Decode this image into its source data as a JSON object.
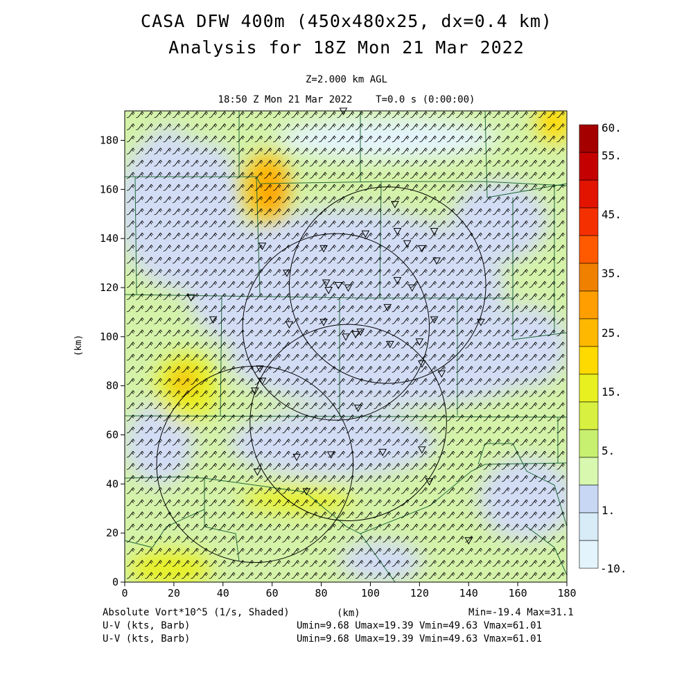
{
  "header": {
    "title_line1": "CASA DFW 400m (450x480x25, dx=0.4 km)",
    "title_line2": "Analysis for 18Z Mon 21 Mar 2022",
    "level": "Z=2.000 km AGL",
    "valid_time": "18:50 Z Mon 21 Mar 2022",
    "t_info": "T=0.0 s (0:00:00)"
  },
  "axes": {
    "x_label": "(km)",
    "y_label": "(km)",
    "x_range": [
      0,
      180
    ],
    "y_range": [
      0,
      192
    ],
    "x_ticks": [
      "0",
      "20",
      "40",
      "60",
      "80",
      "100",
      "120",
      "140",
      "160",
      "180"
    ],
    "y_ticks": [
      "0",
      "20",
      "40",
      "60",
      "80",
      "100",
      "120",
      "140",
      "160",
      "180"
    ]
  },
  "colorbar": {
    "labels": [
      "60.",
      "55.",
      "45.",
      "35.",
      "25.",
      "15.",
      "5.",
      "1.",
      "-10."
    ],
    "colors": [
      "#a50000",
      "#c40000",
      "#e21400",
      "#f53000",
      "#ff5a00",
      "#f08000",
      "#ff9e00",
      "#ffb800",
      "#ffda00",
      "#e8f020",
      "#d8f040",
      "#c8f070",
      "#d8f8b0",
      "#c8d8f4",
      "#d8ecf8",
      "#e4f4fc"
    ]
  },
  "footer": {
    "field_label": "Absolute Vort*10^5 (1/s, Shaded)",
    "x_label": "(km)",
    "minmax": "Min=-19.4 Max=31.1",
    "wind_label_1": "U-V (kts, Barb)",
    "wind_stats_1": "Umin=9.68 Umax=19.39 Vmin=49.63 Vmax=61.01",
    "wind_label_2": "U-V (kts, Barb)",
    "wind_stats_2": "Umin=9.68 Umax=19.39 Vmin=49.63 Vmax=61.01"
  },
  "map_data": {
    "field": "Absolute Vort*10^5",
    "field_min": -19.4,
    "field_max": 31.1,
    "radar_rings_km": [
      {
        "center": [
          107,
          121
        ],
        "radius": 40
      },
      {
        "center": [
          86,
          104
        ],
        "radius": 38
      },
      {
        "center": [
          91,
          65
        ],
        "radius": 40
      },
      {
        "center": [
          53,
          48
        ],
        "radius": 40
      }
    ],
    "triangle_markers_km": [
      [
        89,
        192
      ],
      [
        110,
        154
      ],
      [
        111,
        143
      ],
      [
        115,
        138
      ],
      [
        126,
        143
      ],
      [
        121,
        136
      ],
      [
        98,
        142
      ],
      [
        81,
        136
      ],
      [
        127,
        131
      ],
      [
        66,
        126
      ],
      [
        56,
        137
      ],
      [
        82,
        122
      ],
      [
        87,
        121
      ],
      [
        91,
        120
      ],
      [
        83,
        119
      ],
      [
        111,
        123
      ],
      [
        117,
        120
      ],
      [
        107,
        112
      ],
      [
        126,
        107
      ],
      [
        27,
        116
      ],
      [
        36,
        107
      ],
      [
        67,
        105
      ],
      [
        81,
        106
      ],
      [
        94,
        101
      ],
      [
        96,
        102
      ],
      [
        108,
        97
      ],
      [
        90,
        100
      ],
      [
        120,
        98
      ],
      [
        145,
        106
      ],
      [
        121,
        89
      ],
      [
        129,
        85
      ],
      [
        55,
        87
      ],
      [
        56,
        82
      ],
      [
        53,
        78
      ],
      [
        95,
        71
      ],
      [
        70,
        51
      ],
      [
        84,
        52
      ],
      [
        105,
        53
      ],
      [
        121,
        54
      ],
      [
        54,
        45
      ],
      [
        124,
        41
      ],
      [
        74,
        37
      ],
      [
        140,
        17
      ]
    ]
  }
}
